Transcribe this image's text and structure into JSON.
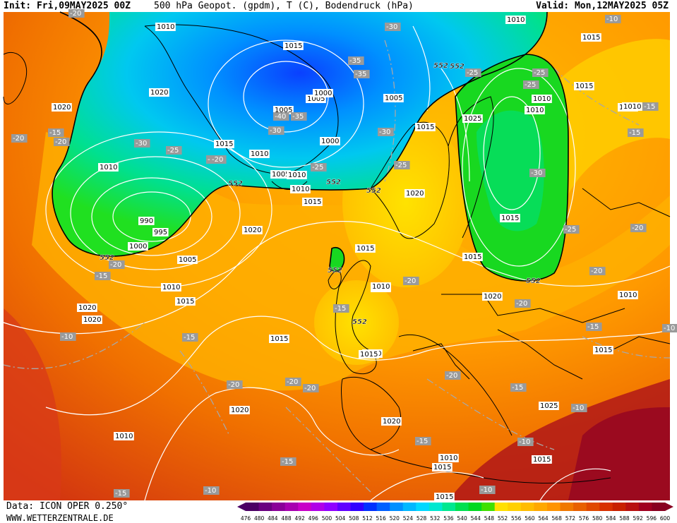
{
  "header": {
    "init": "Init: Fri,09MAY2025 00Z",
    "title": "500 hPa Geopot. (gpdm), T (C), Bodendruck (hPa)",
    "valid": "Valid: Mon,12MAY2025 05Z"
  },
  "footer": {
    "data_source": "Data: ICON OPER 0.250°",
    "website": "WWW.WETTERZENTRALE.DE"
  },
  "map": {
    "pressure_labels": [
      "1010",
      "1010",
      "1020",
      "1020",
      "1015",
      "1010",
      "1005",
      "1000",
      "990",
      "995",
      "1000",
      "1005",
      "1010",
      "1015",
      "1020",
      "1015",
      "1010",
      "1005",
      "1000",
      "1005",
      "1010",
      "1015",
      "1005",
      "1010",
      "1015",
      "1020",
      "1020",
      "1025",
      "1015",
      "1010",
      "1015",
      "1020",
      "1015",
      "1010",
      "1015",
      "1010",
      "1015",
      "1020",
      "1010",
      "1020",
      "1020",
      "1025",
      "1015",
      "1015",
      "1010",
      "1015",
      "1010",
      "1020",
      "1015",
      "1010",
      "1015",
      "1015",
      "1010",
      "1010"
    ],
    "temperature_labels": [
      "-20",
      "-15",
      "-30",
      "-25",
      "-20",
      "-25",
      "-35",
      "-40",
      "-35",
      "-30",
      "-30",
      "-25",
      "-35",
      "-30",
      "-20",
      "-20",
      "-25",
      "-30",
      "-25",
      "-15",
      "-20",
      "-15",
      "-20",
      "-25",
      "-20",
      "-15",
      "-20",
      "-20",
      "-15",
      "-20",
      "-20",
      "-20",
      "-10",
      "-15",
      "-15",
      "-20",
      "-15",
      "-10",
      "-15",
      "-10",
      "-15",
      "-10",
      "-10",
      "-15",
      "-10",
      "-10",
      "-25",
      "-20"
    ],
    "geopotential_labels": [
      "552",
      "552",
      "552",
      "552",
      "552",
      "552",
      "552",
      "552",
      "552"
    ],
    "legend": {
      "values": [
        476,
        480,
        484,
        488,
        492,
        496,
        500,
        504,
        508,
        512,
        516,
        520,
        524,
        528,
        532,
        536,
        540,
        544,
        548,
        552,
        556,
        560,
        564,
        568,
        572,
        576,
        580,
        584,
        588,
        592,
        596,
        600
      ],
      "colors": [
        "#4b0064",
        "#6a0080",
        "#8a0098",
        "#a800b0",
        "#c800c8",
        "#b000e8",
        "#9000ff",
        "#6000ff",
        "#3000ff",
        "#0030ff",
        "#0060ff",
        "#0090ff",
        "#00b8ff",
        "#00d8ff",
        "#00e8d0",
        "#00e890",
        "#00e050",
        "#00d820",
        "#40e000",
        "#ffe000",
        "#ffd000",
        "#ffbc00",
        "#ffa800",
        "#ff9400",
        "#f07800",
        "#e86000",
        "#e04800",
        "#d83000",
        "#c82000",
        "#b81010",
        "#a00020",
        "#880020"
      ]
    }
  }
}
